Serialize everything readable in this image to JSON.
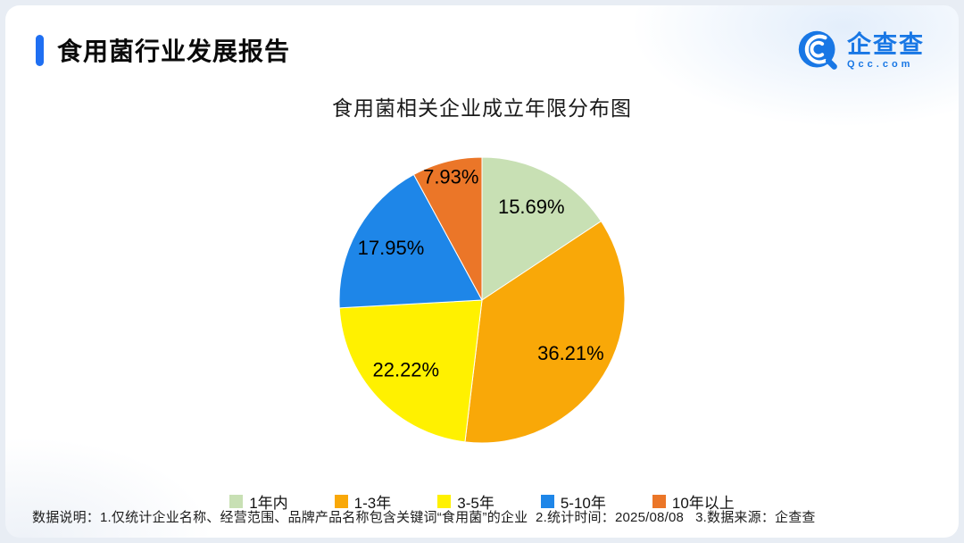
{
  "page": {
    "report_title": "食用菌行业发展报告",
    "footer": "数据说明：1.仅统计企业名称、经营范围、品牌产品名称包含关键词“食用菌”的企业  2.统计时间：2025/08/08   3.数据来源：企查查"
  },
  "logo": {
    "name": "企查查",
    "domain": "Qcc.com",
    "brand_color": "#1877e5"
  },
  "chart_data": {
    "type": "pie",
    "title": "食用菌相关企业成立年限分布图",
    "categories": [
      "1年内",
      "1-3年",
      "3-5年",
      "5-10年",
      "10年以上"
    ],
    "values": [
      15.69,
      36.21,
      22.22,
      17.95,
      7.93
    ],
    "labels": [
      "15.69%",
      "36.21%",
      "22.22%",
      "17.95%",
      "7.93%"
    ],
    "colors": [
      "#c8e0b4",
      "#f9a808",
      "#fff100",
      "#1e86e8",
      "#eb7628"
    ],
    "start_angle": -90,
    "direction": "clockwise",
    "legend_position": "bottom",
    "label_color": "#000000"
  }
}
